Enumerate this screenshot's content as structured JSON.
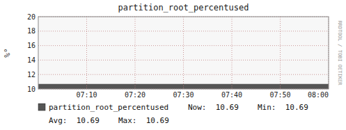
{
  "chart_data": {
    "type": "area",
    "title": "partition_root_percentused",
    "y_label": "%°",
    "x": [
      0,
      6
    ],
    "xlim": [
      0,
      6
    ],
    "xticks": [
      {
        "value": 1,
        "label": "07:10"
      },
      {
        "value": 2,
        "label": "07:20"
      },
      {
        "value": 3,
        "label": "07:30"
      },
      {
        "value": 4,
        "label": "07:40"
      },
      {
        "value": 5,
        "label": "07:50"
      },
      {
        "value": 6,
        "label": "08:00"
      }
    ],
    "ylim": [
      10,
      20
    ],
    "yticks": [
      10,
      12,
      14,
      16,
      18,
      20
    ],
    "grid": true,
    "legend": "bottom",
    "series": [
      {
        "name": "partition_root_percentused",
        "color": "#555555",
        "values": [
          10.69,
          10.69
        ]
      }
    ],
    "annotations": [
      "Now:  10.69",
      "Min:  10.69",
      "Avg:  10.69",
      "Max:  10.69",
      "RRDTOOL / TOBI OETIKER"
    ]
  }
}
